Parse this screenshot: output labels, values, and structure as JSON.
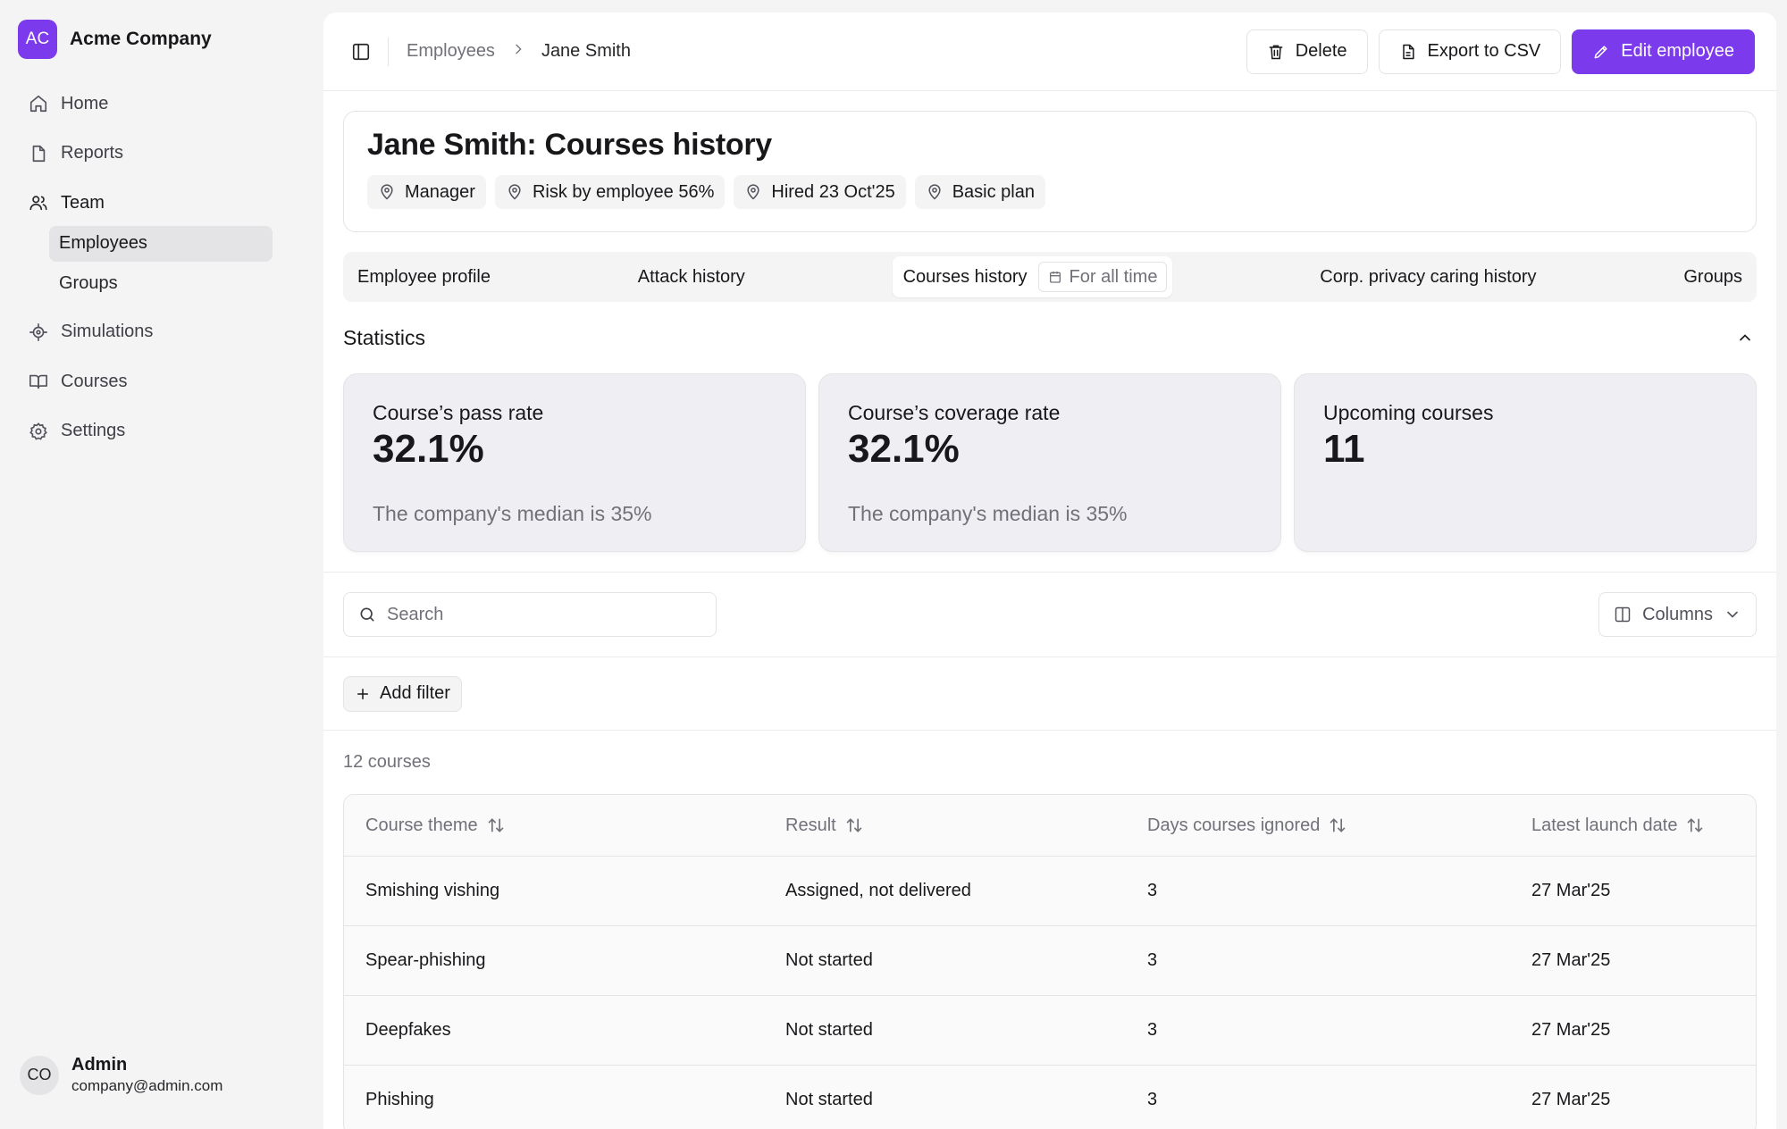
{
  "company": {
    "initials": "AC",
    "name": "Acme Company"
  },
  "nav": {
    "home": "Home",
    "reports": "Reports",
    "team": "Team",
    "employees": "Employees",
    "groups": "Groups",
    "simulations": "Simulations",
    "courses": "Courses",
    "settings": "Settings"
  },
  "user": {
    "initials": "CO",
    "name": "Admin",
    "email": "company@admin.com"
  },
  "breadcrumb": {
    "parent": "Employees",
    "current": "Jane Smith"
  },
  "actions": {
    "delete": "Delete",
    "export": "Export to CSV",
    "edit": "Edit employee"
  },
  "header": {
    "title": "Jane Smith: Courses history",
    "chips": [
      "Manager",
      "Risk by employee 56%",
      "Hired 23 Oct'25",
      "Basic plan"
    ]
  },
  "tabs": {
    "profile": "Employee profile",
    "attack": "Attack history",
    "courses": "Courses history",
    "range": "For all time",
    "privacy": "Corp. privacy caring history",
    "groups": "Groups"
  },
  "statistics": {
    "title": "Statistics",
    "cards": [
      {
        "label": "Course’s pass rate",
        "value": "32.1%",
        "sub": "The company's median is 35%"
      },
      {
        "label": "Course’s coverage rate",
        "value": "32.1%",
        "sub": "The company's median is 35%"
      },
      {
        "label": "Upcoming courses",
        "value": "11",
        "sub": ""
      }
    ]
  },
  "search": {
    "placeholder": "Search"
  },
  "columns_label": "Columns",
  "add_filter": "Add filter",
  "count": "12 courses",
  "table": {
    "headers": [
      "Course theme",
      "Result",
      "Days courses ignored",
      "Latest launch date"
    ],
    "rows": [
      [
        "Smishing vishing",
        "Assigned, not delivered",
        "3",
        "27 Mar'25"
      ],
      [
        "Spear-phishing",
        "Not started",
        "3",
        "27 Mar'25"
      ],
      [
        "Deepfakes",
        "Not started",
        "3",
        "27 Mar'25"
      ],
      [
        "Phishing",
        "Not started",
        "3",
        "27 Mar'25"
      ]
    ]
  },
  "colors": {
    "accent": "#7c3aed",
    "muted": "#71717a",
    "panel": "#f4f4f5"
  }
}
